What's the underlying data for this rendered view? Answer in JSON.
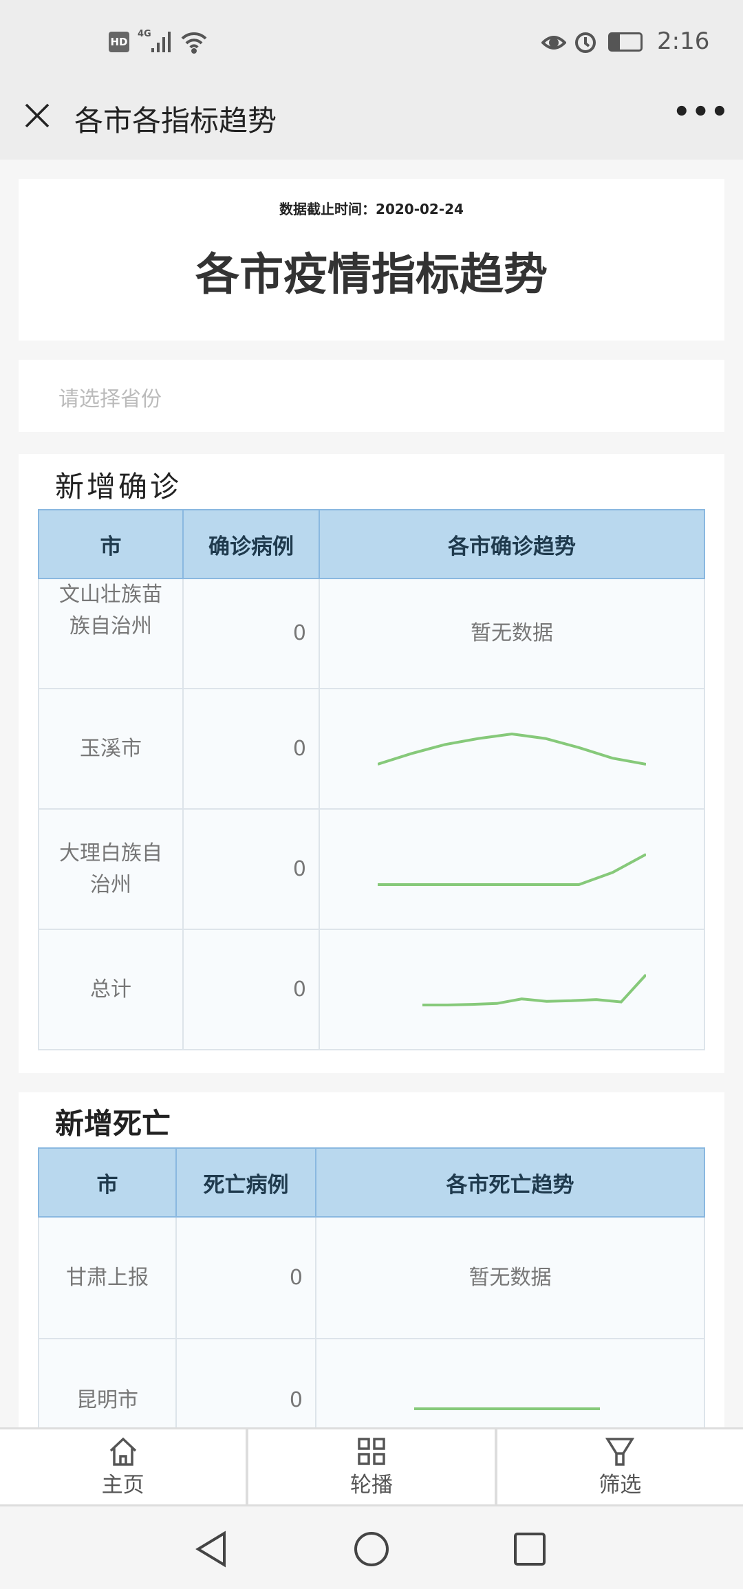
{
  "status_bar": {
    "time": "2:16",
    "left_icons": [
      "hd-icon",
      "4g-signal-icon",
      "wifi-icon"
    ],
    "right_icons": [
      "eye-icon",
      "alarm-icon",
      "battery-icon"
    ],
    "hd": "HD",
    "net": "4G"
  },
  "titlebar": {
    "title": "各市各指标趋势"
  },
  "header": {
    "date_label": "数据截止时间：",
    "date": "2020-02-24",
    "title": "各市疫情指标趋势"
  },
  "province_select": {
    "placeholder": "请选择省份"
  },
  "colors": {
    "header_bg": "#b9d8ee",
    "sparkline": "#86c97a",
    "cell_bg": "#f8fbfd"
  },
  "confirmed": {
    "heading": "新增确诊",
    "columns": [
      "市",
      "确诊病例",
      "各市确诊趋势"
    ],
    "rows": [
      {
        "city": "文山壮族苗族自治州",
        "count": "0",
        "trend": null,
        "no_data": "暂无数据"
      },
      {
        "city": "玉溪市",
        "count": "0",
        "trend": [
          0,
          0.35,
          0.65,
          0.85,
          1,
          0.85,
          0.55,
          0.2,
          0
        ]
      },
      {
        "city": "大理白族自治州",
        "count": "0",
        "trend": [
          0,
          0,
          0,
          0,
          0,
          0,
          0,
          0.4,
          1
        ]
      },
      {
        "city": "总计",
        "count": "0",
        "trend": [
          0,
          0,
          0.02,
          0.05,
          0.2,
          0.12,
          0.14,
          0.18,
          0.1,
          1
        ]
      }
    ]
  },
  "deaths": {
    "heading": "新增死亡",
    "columns": [
      "市",
      "死亡病例",
      "各市死亡趋势"
    ],
    "rows": [
      {
        "city": "甘肃上报",
        "count": "0",
        "trend": null,
        "no_data": "暂无数据"
      },
      {
        "city": "昆明市",
        "count": "0",
        "trend": [
          0,
          0,
          0,
          0,
          0,
          0
        ]
      }
    ]
  },
  "bottom_tabs": [
    {
      "label": "主页",
      "icon": "home-icon"
    },
    {
      "label": "轮播",
      "icon": "grid-icon"
    },
    {
      "label": "筛选",
      "icon": "filter-icon"
    }
  ]
}
